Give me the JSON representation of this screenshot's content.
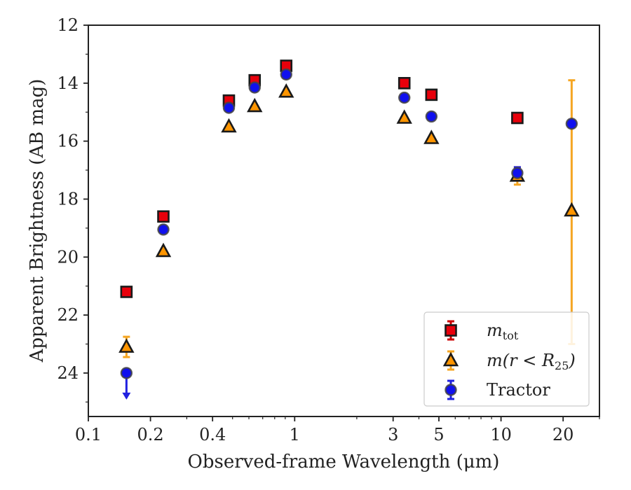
{
  "chart_data": {
    "type": "scatter",
    "title": "",
    "xlabel": "Observed-frame Wavelength (μm)",
    "ylabel": "Apparent Brightness (AB mag)",
    "xscale": "log",
    "xlim": [
      0.1,
      30
    ],
    "ylim": [
      25.5,
      12
    ],
    "y_inverted": true,
    "grid": false,
    "legend_position": "bottom-right",
    "x_ticks": [
      {
        "value": 0.1,
        "label": "0.1"
      },
      {
        "value": 0.2,
        "label": "0.2"
      },
      {
        "value": 0.4,
        "label": "0.4"
      },
      {
        "value": 1,
        "label": "1"
      },
      {
        "value": 3,
        "label": "3"
      },
      {
        "value": 5,
        "label": "5"
      },
      {
        "value": 10,
        "label": "10"
      },
      {
        "value": 20,
        "label": "20"
      }
    ],
    "y_ticks": [
      {
        "value": 12,
        "label": "12"
      },
      {
        "value": 14,
        "label": "14"
      },
      {
        "value": 16,
        "label": "16"
      },
      {
        "value": 18,
        "label": "18"
      },
      {
        "value": 20,
        "label": "20"
      },
      {
        "value": 22,
        "label": "22"
      },
      {
        "value": 24,
        "label": "24"
      }
    ],
    "series": [
      {
        "name": "m_tot",
        "legend_base": "m",
        "legend_sub": "tot",
        "marker": "square",
        "color": "#e8000b",
        "edge_color": "#1a1a1a",
        "error_color": "#cc0000",
        "points": [
          {
            "x": 0.153,
            "y": 21.2
          },
          {
            "x": 0.231,
            "y": 18.6
          },
          {
            "x": 0.48,
            "y": 14.6
          },
          {
            "x": 0.64,
            "y": 13.9
          },
          {
            "x": 0.91,
            "y": 13.4
          },
          {
            "x": 3.4,
            "y": 14.0
          },
          {
            "x": 4.6,
            "y": 14.4
          },
          {
            "x": 12.0,
            "y": 15.2
          }
        ]
      },
      {
        "name": "m(r < R25)",
        "legend_base": "m(r < R",
        "legend_sub": "25",
        "legend_tail": ")",
        "marker": "triangle",
        "color": "#ff9500",
        "edge_color": "#1a1a1a",
        "error_color": "#f5a623",
        "points": [
          {
            "x": 0.153,
            "y": 23.1,
            "err": 0.35
          },
          {
            "x": 0.231,
            "y": 19.8
          },
          {
            "x": 0.48,
            "y": 15.5
          },
          {
            "x": 0.64,
            "y": 14.8
          },
          {
            "x": 0.91,
            "y": 14.3
          },
          {
            "x": 3.4,
            "y": 15.2
          },
          {
            "x": 4.6,
            "y": 15.9
          },
          {
            "x": 12.0,
            "y": 17.2,
            "err": 0.3
          },
          {
            "x": 22.0,
            "y": 18.4,
            "err_low": 13.9,
            "err_high": 23.0
          }
        ]
      },
      {
        "name": "Tractor",
        "legend_base": "Tractor",
        "marker": "circle",
        "color": "#1010ee",
        "edge_color": "#444444",
        "error_color": "#2020e0",
        "points": [
          {
            "x": 0.153,
            "y": 24.0,
            "upper_limit": true
          },
          {
            "x": 0.231,
            "y": 19.05
          },
          {
            "x": 0.48,
            "y": 14.85
          },
          {
            "x": 0.64,
            "y": 14.15
          },
          {
            "x": 0.91,
            "y": 13.7
          },
          {
            "x": 3.4,
            "y": 14.5
          },
          {
            "x": 4.6,
            "y": 15.15
          },
          {
            "x": 12.0,
            "y": 17.1,
            "err": 0.2
          },
          {
            "x": 22.0,
            "y": 15.4
          }
        ]
      }
    ]
  }
}
